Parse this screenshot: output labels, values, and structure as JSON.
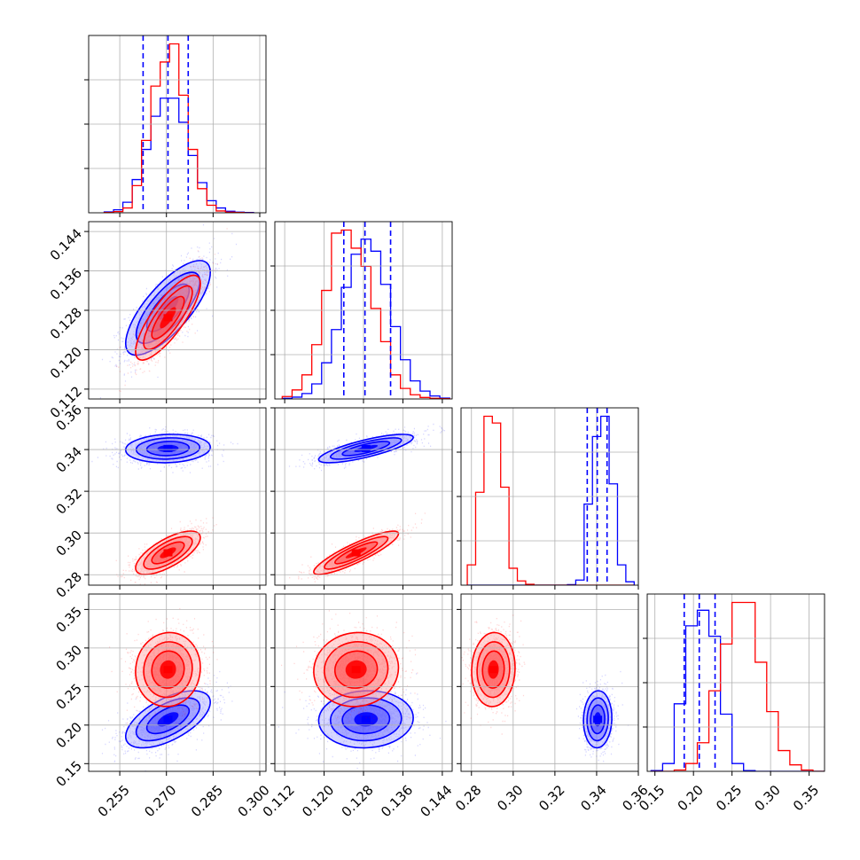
{
  "chart_data": {
    "type": "corner",
    "title": "",
    "grid": true,
    "parameters": [
      {
        "label": "",
        "range": [
          0.245,
          0.302
        ],
        "ticks": [
          0.255,
          0.27,
          0.285,
          0.3
        ],
        "tick_labels": [
          "0.255",
          "0.270",
          "0.285",
          "0.300"
        ]
      },
      {
        "label": "",
        "range": [
          0.11,
          0.146
        ],
        "ticks": [
          0.112,
          0.12,
          0.128,
          0.136,
          0.144
        ],
        "tick_labels": [
          "0.112",
          "0.120",
          "0.128",
          "0.136",
          "0.144"
        ]
      },
      {
        "label": "",
        "range": [
          0.275,
          0.36
        ],
        "ticks": [
          0.28,
          0.3,
          0.32,
          0.34,
          0.36
        ],
        "tick_labels": [
          "0.28",
          "0.30",
          "0.32",
          "0.34",
          "0.36"
        ]
      },
      {
        "label": "",
        "range": [
          0.14,
          0.37
        ],
        "ticks": [
          0.15,
          0.2,
          0.25,
          0.3,
          0.35
        ],
        "tick_labels": [
          "0.15",
          "0.20",
          "0.25",
          "0.30",
          "0.35"
        ]
      }
    ],
    "series": [
      {
        "color": "#0000ff",
        "means": [
          0.2705,
          0.1285,
          0.3405,
          0.2075
        ],
        "stds": [
          0.0068,
          0.0048,
          0.0034,
          0.0185
        ],
        "quantile_lines": [
          [
            0.2625,
            0.2705,
            0.277
          ],
          [
            0.124,
            0.1283,
            0.1335
          ],
          [
            0.3355,
            0.3403,
            0.345
          ],
          [
            0.188,
            0.2075,
            0.228
          ]
        ]
      },
      {
        "color": "#ff0000",
        "means": [
          0.2705,
          0.1265,
          0.2905,
          0.272
        ],
        "stds": [
          0.0052,
          0.0043,
          0.0052,
          0.024
        ],
        "quantile_lines": null
      }
    ],
    "quantile_line_color": "#0000ff",
    "histograms": [
      {
        "bins": [
          0.25,
          0.253,
          0.256,
          0.259,
          0.262,
          0.265,
          0.268,
          0.271,
          0.274,
          0.277,
          0.28,
          0.283,
          0.286,
          0.289,
          0.292,
          0.295,
          0.298
        ],
        "blue": [
          0.3,
          1.0,
          3.5,
          11,
          21,
          32,
          38,
          38,
          30,
          19,
          10,
          4,
          1.6,
          0.5,
          0.2,
          0.1
        ],
        "red": [
          0.1,
          0.4,
          1.6,
          9,
          24,
          42,
          50,
          56,
          39,
          21,
          8,
          2.5,
          0.6,
          0.2,
          0.1,
          0.0
        ]
      },
      {
        "bins": [
          0.1115,
          0.1135,
          0.1155,
          0.1175,
          0.1195,
          0.1215,
          0.1235,
          0.1255,
          0.1275,
          0.1295,
          0.1315,
          0.1335,
          0.1355,
          0.1375,
          0.1395,
          0.1415,
          0.1435,
          0.1455
        ],
        "blue": [
          0.2,
          0.6,
          1.8,
          5,
          12,
          23,
          37,
          48,
          53,
          49,
          38,
          24,
          13,
          6,
          2.6,
          1.0,
          0.3
        ],
        "red": [
          0.8,
          3,
          8,
          18,
          36,
          55,
          56,
          50,
          44,
          30,
          19,
          8,
          3.5,
          1.4,
          0.5,
          0.2,
          0.1
        ]
      },
      {
        "bins": [
          0.278,
          0.282,
          0.286,
          0.29,
          0.294,
          0.298,
          0.302,
          0.306,
          0.31,
          0.314,
          0.318,
          0.322,
          0.326,
          0.33,
          0.334,
          0.338,
          0.342,
          0.346,
          0.35,
          0.354,
          0.358
        ],
        "blue": [
          0,
          0,
          0,
          0,
          0,
          0,
          0,
          0,
          0,
          0,
          0,
          0,
          0.3,
          3,
          48,
          88,
          100,
          60,
          12,
          2
        ],
        "red": [
          12,
          55,
          100,
          96,
          58,
          10,
          2.5,
          0.5,
          0,
          0,
          0,
          0,
          0,
          0,
          0,
          0,
          0,
          0,
          0,
          0
        ]
      },
      {
        "bins": [
          0.145,
          0.16,
          0.175,
          0.19,
          0.205,
          0.22,
          0.235,
          0.25,
          0.265,
          0.28,
          0.295,
          0.31,
          0.325,
          0.34,
          0.355,
          0.37
        ],
        "blue": [
          0.3,
          3,
          26,
          56,
          62,
          52,
          22,
          3,
          0.3,
          0,
          0,
          0,
          0,
          0,
          0
        ],
        "red": [
          0,
          0,
          0.5,
          3,
          11,
          31,
          49,
          65,
          65,
          42,
          23,
          8,
          2.5,
          0.5,
          0
        ]
      }
    ]
  }
}
